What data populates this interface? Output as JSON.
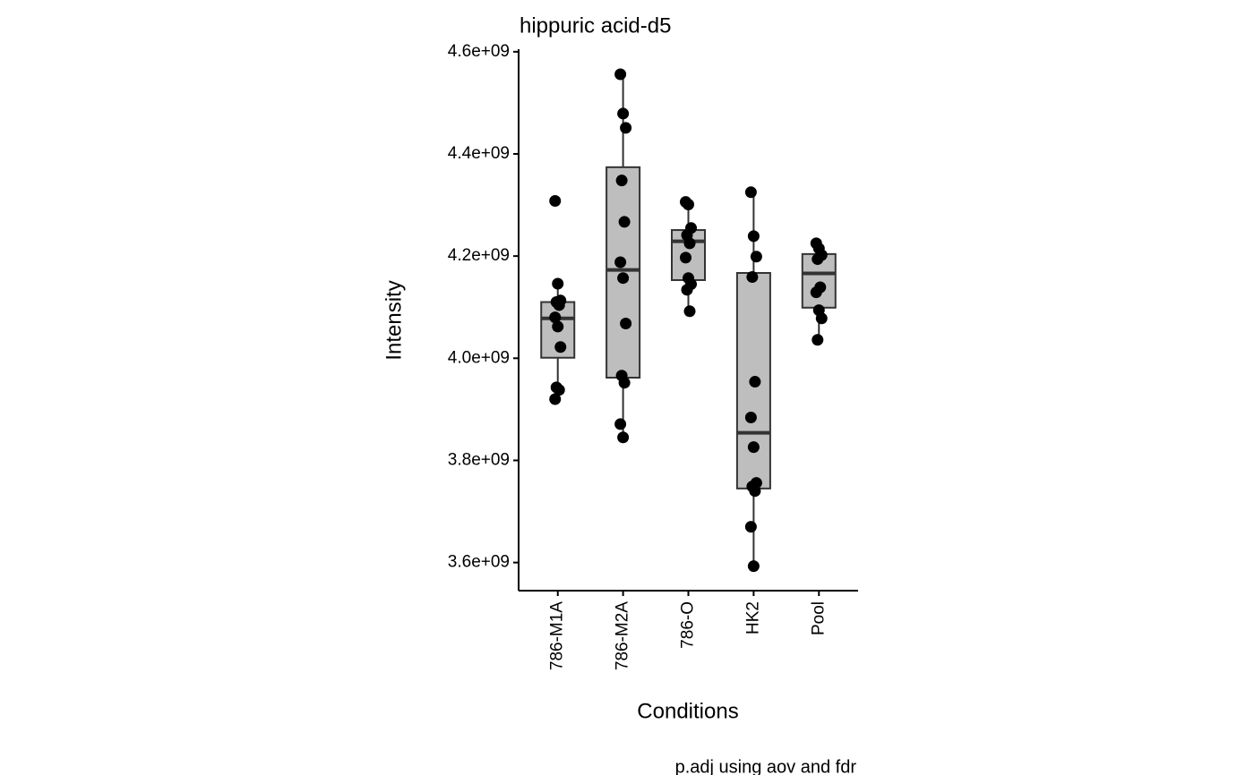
{
  "chart_data": {
    "type": "box",
    "title": "hippuric acid-d5",
    "xlabel": "Conditions",
    "ylabel": "Intensity",
    "caption": "p.adj using  aov and fdr",
    "categories": [
      "786-M1A",
      "786-M2A",
      "786-O",
      "HK2",
      "Pool"
    ],
    "color": "#bebebe",
    "boxes": [
      {
        "q1": 4001000000,
        "median": 4078000000,
        "q3": 4110000000,
        "whisker_low": 3920000000,
        "whisker_high": 4146000000,
        "points": [
          4308000000,
          4146000000,
          4113000000,
          4110000000,
          4104000000,
          4080000000,
          4062000000,
          4022000000,
          3943000000,
          3938000000,
          3920000000
        ]
      },
      {
        "q1": 3962000000,
        "median": 4173000000,
        "q3": 4374000000,
        "whisker_low": 3845000000,
        "whisker_high": 4556000000,
        "points": [
          4556000000,
          4479000000,
          4451000000,
          4348000000,
          4267000000,
          4188000000,
          4157000000,
          4068000000,
          3966000000,
          3952000000,
          3871000000,
          3845000000
        ]
      },
      {
        "q1": 4153000000,
        "median": 4229000000,
        "q3": 4251000000,
        "whisker_low": 4092000000,
        "whisker_high": 4306000000,
        "points": [
          4306000000,
          4301000000,
          4255000000,
          4241000000,
          4225000000,
          4197000000,
          4157000000,
          4145000000,
          4134000000,
          4092000000
        ]
      },
      {
        "q1": 3745000000,
        "median": 3854000000,
        "q3": 4167000000,
        "whisker_low": 3593000000,
        "whisker_high": 4325000000,
        "points": [
          4325000000,
          4239000000,
          4199000000,
          4159000000,
          3954000000,
          3884000000,
          3826000000,
          3756000000,
          3749000000,
          3740000000,
          3670000000,
          3593000000
        ]
      },
      {
        "q1": 4099000000,
        "median": 4166000000,
        "q3": 4204000000,
        "whisker_low": 4036000000,
        "whisker_high": 4225000000,
        "points": [
          4225000000,
          4215000000,
          4202000000,
          4194000000,
          4139000000,
          4129000000,
          4094000000,
          4078000000,
          4036000000
        ]
      }
    ],
    "ylim": [
      3545000000,
      4605000000
    ],
    "yticks": [
      {
        "value": 3600000000,
        "label": "3.6e+09"
      },
      {
        "value": 3800000000,
        "label": "3.8e+09"
      },
      {
        "value": 4000000000,
        "label": "4.0e+09"
      },
      {
        "value": 4200000000,
        "label": "4.2e+09"
      },
      {
        "value": 4400000000,
        "label": "4.4e+09"
      },
      {
        "value": 4600000000,
        "label": "4.6e+09"
      }
    ]
  }
}
